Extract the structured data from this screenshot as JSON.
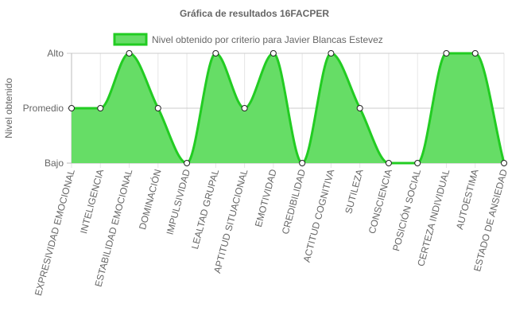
{
  "chart_data": {
    "type": "area",
    "title": "Gráfica de resultados 16FACPER",
    "ylabel": "Nivel obtenido",
    "xlabel": "",
    "y_levels": [
      "Bajo",
      "Promedio",
      "Alto"
    ],
    "ylim": [
      0,
      2
    ],
    "grid": true,
    "legend_position": "top",
    "categories": [
      "EXPRESIVIDAD EMOCIONAL",
      "INTELIGENCIA",
      "ESTABILIDAD EMOCIONAL",
      "DOMINACIÓN",
      "IMPULSIVIDAD",
      "LEALTAD GRUPAL",
      "APTITUD SITUACIONAL",
      "EMOTIVIDAD",
      "CREDIBILIDAD",
      "ACTITUD COGNITIVA",
      "SUTILEZA",
      "CONSCIENCIA",
      "POSICIÓN SOCIAL",
      "CERTEZA INDIVIDUAL",
      "AUTOESTIMA",
      "ESTADO DE ANSIEDAD"
    ],
    "series": [
      {
        "name": "Nivel obtenido por criterio para Javier Blancas Estevez",
        "values": [
          1,
          1,
          2,
          1,
          0,
          2,
          1,
          2,
          0,
          2,
          1,
          0,
          0,
          2,
          2,
          0
        ],
        "fill_color": "#66dd66",
        "line_color": "#22cc22"
      }
    ]
  }
}
